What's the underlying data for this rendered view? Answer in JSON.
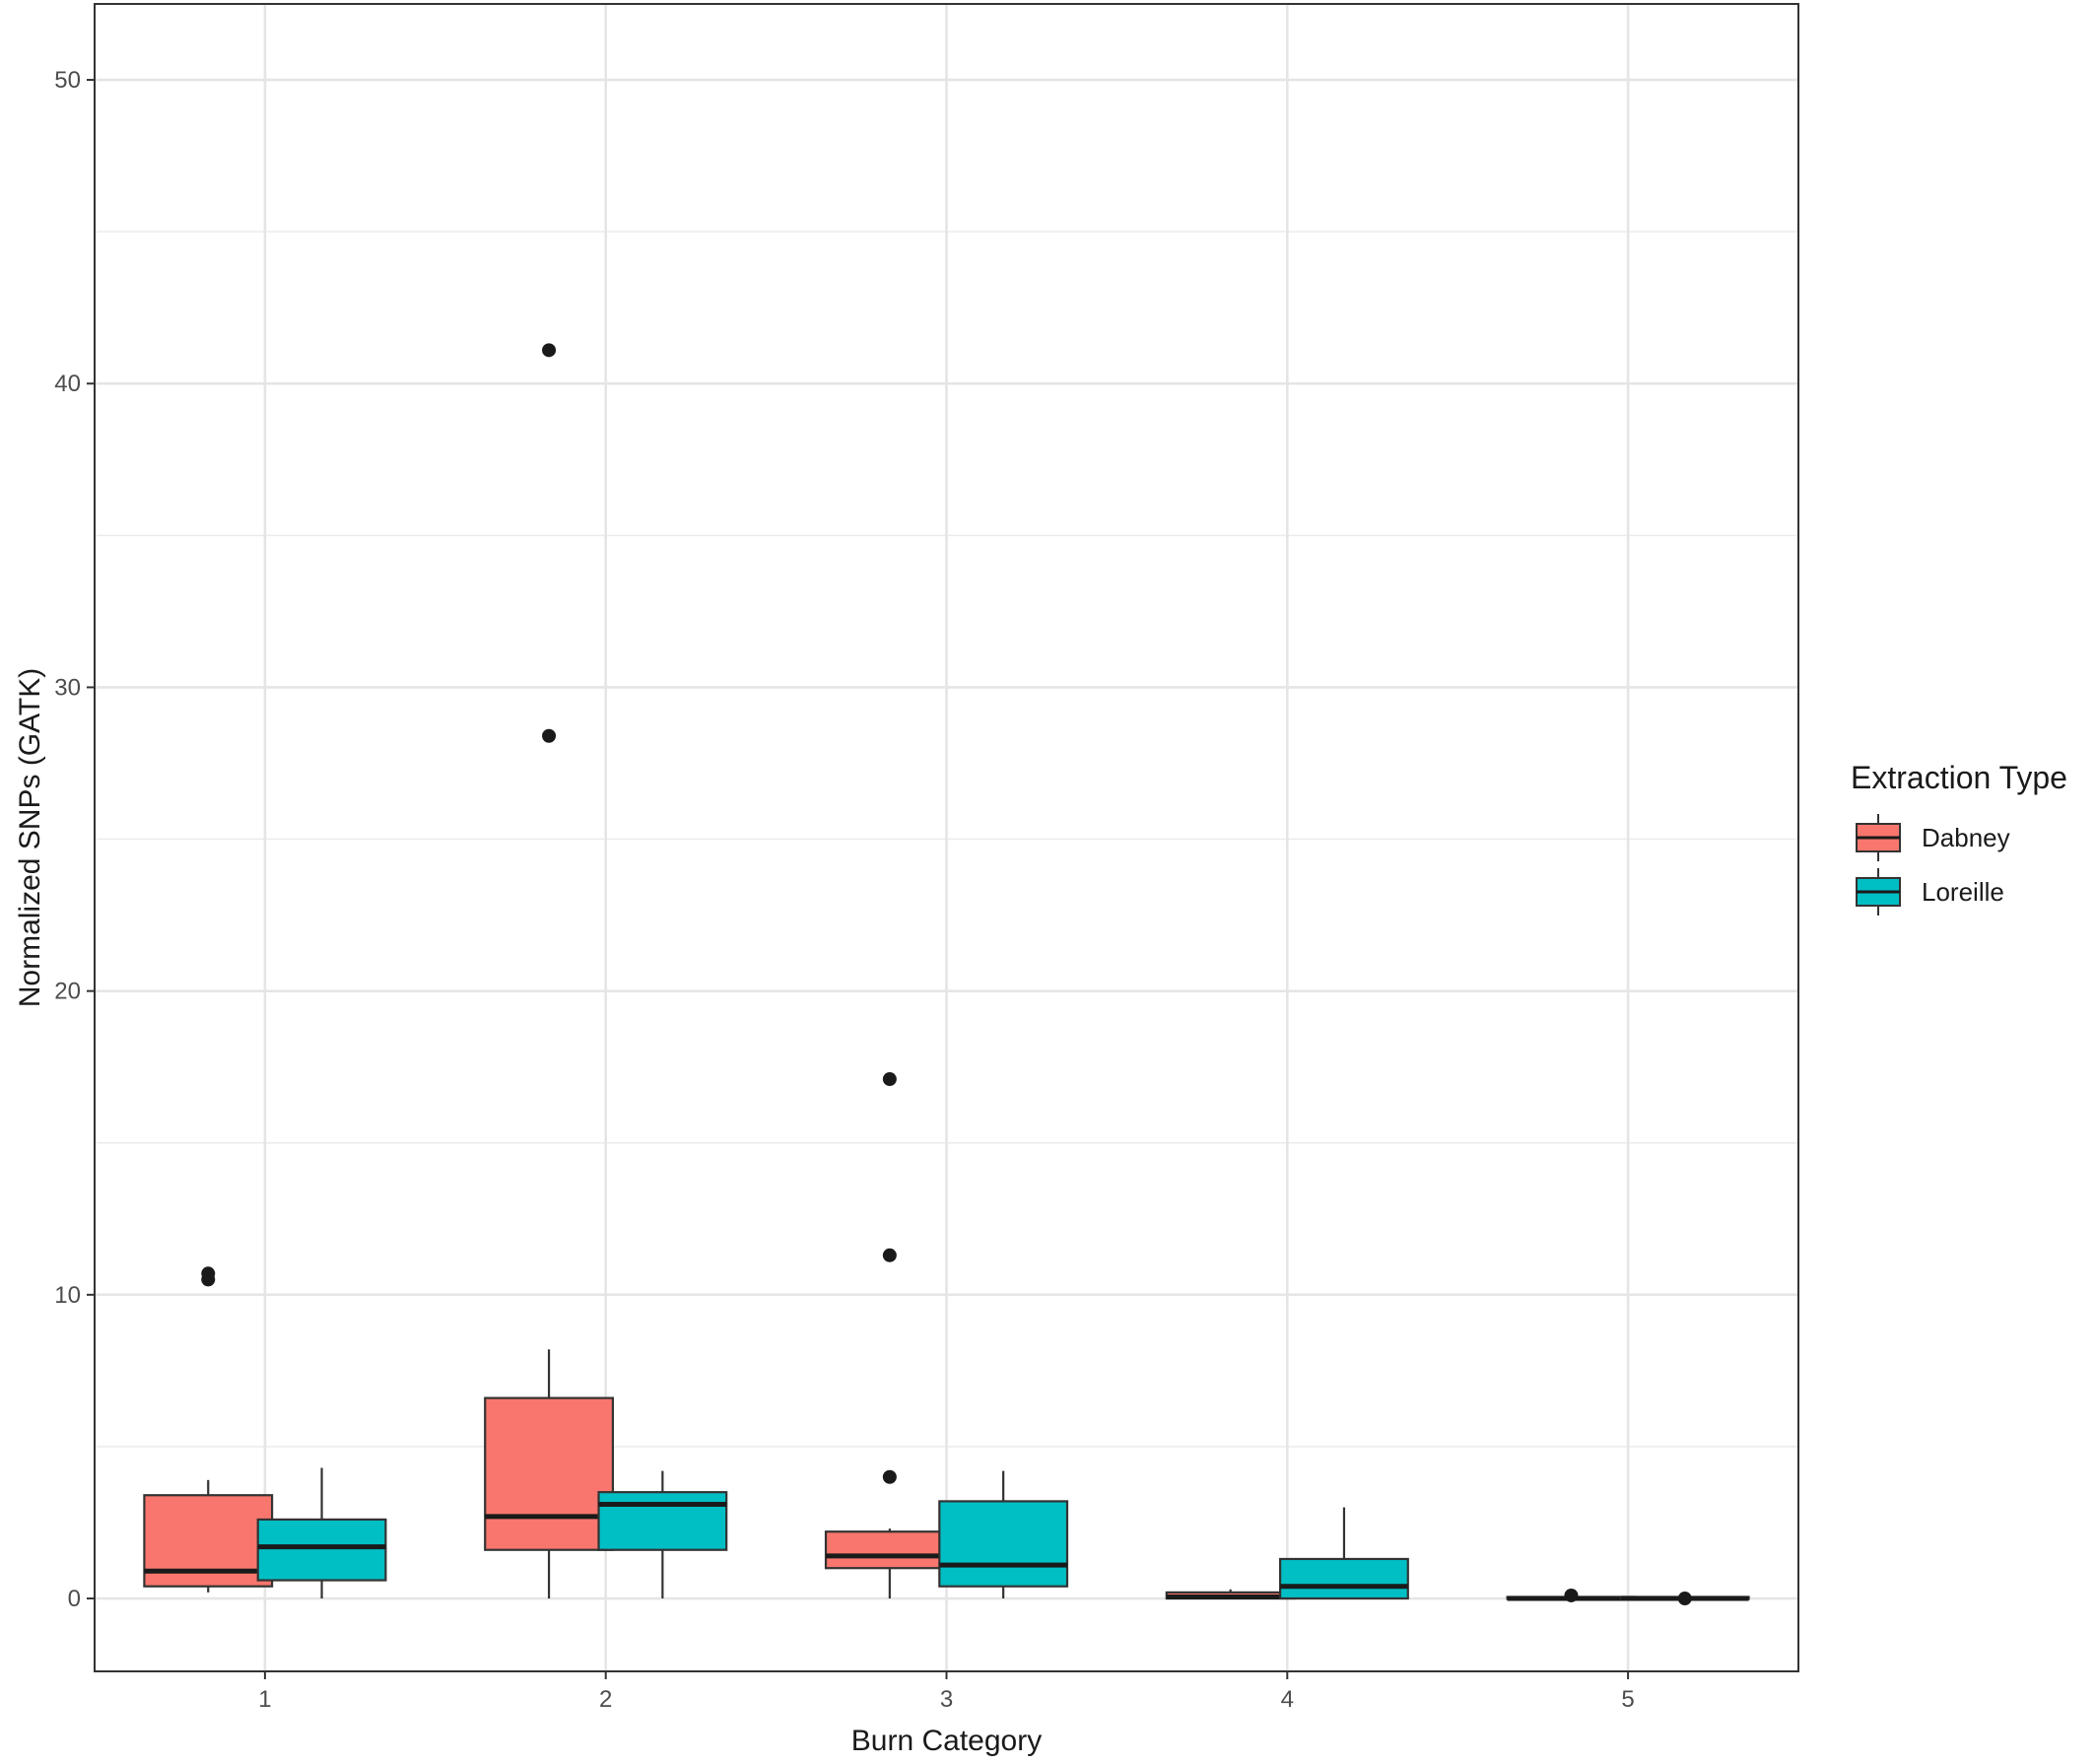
{
  "chart_data": {
    "type": "boxplot",
    "xlabel": "Burn Category",
    "ylabel": "Normalized SNPs (GATK)",
    "ylim": [
      -2.4,
      52.5
    ],
    "yticks": [
      0,
      10,
      20,
      30,
      40,
      50
    ],
    "y_minor_ticks": [
      5,
      15,
      25,
      35,
      45
    ],
    "categories": [
      "1",
      "2",
      "3",
      "4",
      "5"
    ],
    "grid": true,
    "legend": {
      "title": "Extraction Type",
      "position": "right",
      "entries": [
        "Dabney",
        "Loreille"
      ]
    },
    "series": [
      {
        "name": "Dabney",
        "color": "#F8766D",
        "boxes": [
          {
            "category": "1",
            "whisker_low": 0.2,
            "q1": 0.4,
            "median": 0.9,
            "q3": 3.4,
            "whisker_high": 3.9,
            "outliers": [
              10.5,
              10.7
            ]
          },
          {
            "category": "2",
            "whisker_low": 0.0,
            "q1": 1.6,
            "median": 2.7,
            "q3": 6.6,
            "whisker_high": 8.2,
            "outliers": [
              28.4,
              41.1
            ]
          },
          {
            "category": "3",
            "whisker_low": 0.0,
            "q1": 1.0,
            "median": 1.4,
            "q3": 2.2,
            "whisker_high": 2.3,
            "outliers": [
              4.0,
              11.3,
              17.1
            ]
          },
          {
            "category": "4",
            "whisker_low": 0.0,
            "q1": 0.0,
            "median": 0.05,
            "q3": 0.2,
            "whisker_high": 0.3,
            "outliers": []
          },
          {
            "category": "5",
            "whisker_low": 0.0,
            "q1": 0.0,
            "median": 0.0,
            "q3": 0.05,
            "whisker_high": 0.05,
            "outliers": [
              0.1
            ]
          }
        ]
      },
      {
        "name": "Loreille",
        "color": "#00BFC4",
        "boxes": [
          {
            "category": "1",
            "whisker_low": 0.0,
            "q1": 0.6,
            "median": 1.7,
            "q3": 2.6,
            "whisker_high": 4.3,
            "outliers": []
          },
          {
            "category": "2",
            "whisker_low": 0.0,
            "q1": 1.6,
            "median": 3.1,
            "q3": 3.5,
            "whisker_high": 4.2,
            "outliers": []
          },
          {
            "category": "3",
            "whisker_low": 0.0,
            "q1": 0.4,
            "median": 1.1,
            "q3": 3.2,
            "whisker_high": 4.2,
            "outliers": []
          },
          {
            "category": "4",
            "whisker_low": 0.0,
            "q1": 0.0,
            "median": 0.4,
            "q3": 1.3,
            "whisker_high": 3.0,
            "outliers": []
          },
          {
            "category": "5",
            "whisker_low": 0.0,
            "q1": 0.0,
            "median": 0.0,
            "q3": 0.05,
            "whisker_high": 0.05,
            "outliers": [
              0.0
            ]
          }
        ]
      }
    ]
  }
}
